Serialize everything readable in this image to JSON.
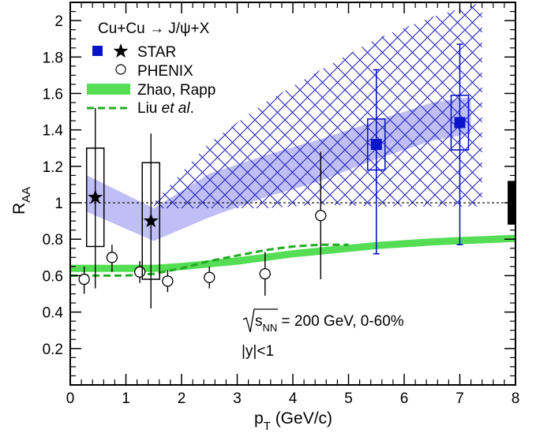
{
  "chart_data": {
    "type": "scatter",
    "xlabel": "p",
    "xlabel_sub": "T",
    "xlabel_unit": " (GeV/c)",
    "ylabel": "R",
    "ylabel_sub": "AA",
    "xlim": [
      0,
      8
    ],
    "ylim": [
      0,
      2.1
    ],
    "x_ticks": [
      0,
      1,
      2,
      3,
      4,
      5,
      6,
      7,
      8
    ],
    "y_ticks": [
      0.2,
      0.4,
      0.6,
      0.8,
      1,
      1.2,
      1.4,
      1.6,
      1.8,
      2
    ],
    "x_tick_labels": [
      "0",
      "1",
      "2",
      "3",
      "4",
      "5",
      "6",
      "7",
      "8"
    ],
    "y_tick_labels": [
      "0.2",
      "0.4",
      "0.6",
      "0.8",
      "1",
      "1.2",
      "1.4",
      "1.6",
      "1.8",
      "2"
    ],
    "grid": false,
    "legend_position": "top-left",
    "title": "Cu+Cu → J/ψ+X",
    "legend": {
      "star": "STAR",
      "phenix": "PHENIX",
      "zhao": "Zhao, Rapp",
      "liu_prefix": "Liu ",
      "liu_italic": "et al",
      "liu_suffix": "."
    },
    "annotations": {
      "energy_sqrt": "s",
      "energy_sub": "NN",
      "energy_rest": " = 200 GeV, 0-60%",
      "rapidity": "|y|<1"
    },
    "reference_line": 1.0,
    "series": [
      {
        "name": "STAR",
        "marker": "star",
        "color": "#000000",
        "points": [
          {
            "x": 0.45,
            "y": 1.03,
            "stat_low": 0.53,
            "stat_high": 1.52,
            "sys_low": 0.76,
            "sys_high": 1.3
          },
          {
            "x": 1.45,
            "y": 0.9,
            "stat_low": 0.42,
            "stat_high": 1.38,
            "sys_low": 0.58,
            "sys_high": 1.22
          }
        ]
      },
      {
        "name": "STAR",
        "marker": "square",
        "color": "#0a14c8",
        "points": [
          {
            "x": 5.5,
            "y": 1.32,
            "stat_low": 0.72,
            "stat_high": 1.73,
            "sys_low": 1.18,
            "sys_high": 1.46
          },
          {
            "x": 7.0,
            "y": 1.44,
            "stat_low": 0.77,
            "stat_high": 1.87,
            "sys_low": 1.29,
            "sys_high": 1.59
          }
        ]
      },
      {
        "name": "PHENIX",
        "marker": "open-circle",
        "color": "#000000",
        "points": [
          {
            "x": 0.25,
            "y": 0.58,
            "err_low": 0.5,
            "err_high": 0.65
          },
          {
            "x": 0.75,
            "y": 0.7,
            "err_low": 0.62,
            "err_high": 0.77
          },
          {
            "x": 1.25,
            "y": 0.62,
            "err_low": 0.56,
            "err_high": 0.68
          },
          {
            "x": 1.75,
            "y": 0.57,
            "err_low": 0.51,
            "err_high": 0.63
          },
          {
            "x": 2.5,
            "y": 0.59,
            "err_low": 0.53,
            "err_high": 0.65
          },
          {
            "x": 3.5,
            "y": 0.61,
            "err_low": 0.49,
            "err_high": 0.73
          },
          {
            "x": 4.5,
            "y": 0.93,
            "err_low": 0.58,
            "err_high": 1.28
          }
        ]
      },
      {
        "name": "Zhao, Rapp",
        "type": "band",
        "color": "#55dd55",
        "x": [
          0,
          1,
          1.5,
          2,
          2.5,
          3,
          3.5,
          4,
          4.5,
          5,
          5.5,
          6,
          6.5,
          7,
          7.5,
          8
        ],
        "low": [
          0.62,
          0.62,
          0.62,
          0.63,
          0.645,
          0.66,
          0.68,
          0.7,
          0.715,
          0.73,
          0.745,
          0.755,
          0.765,
          0.772,
          0.778,
          0.785
        ],
        "high": [
          0.66,
          0.66,
          0.66,
          0.67,
          0.685,
          0.7,
          0.72,
          0.74,
          0.755,
          0.77,
          0.785,
          0.795,
          0.805,
          0.812,
          0.818,
          0.825
        ]
      },
      {
        "name": "Liu et al.",
        "type": "dashed-line",
        "color": "#22aa22",
        "x": [
          0,
          1,
          1.5,
          2,
          2.5,
          3,
          3.5,
          4,
          4.5,
          5
        ],
        "y": [
          0.6,
          0.6,
          0.61,
          0.64,
          0.68,
          0.71,
          0.74,
          0.76,
          0.77,
          0.77
        ]
      },
      {
        "type": "shaded-band",
        "color": "#b4b4f5",
        "x": [
          0.3,
          1.5,
          2.5,
          3.5,
          4.5,
          5.5,
          6.5,
          7.2
        ],
        "low": [
          0.95,
          0.79,
          0.92,
          1.03,
          1.12,
          1.24,
          1.34,
          1.38
        ],
        "high": [
          1.15,
          0.97,
          1.16,
          1.26,
          1.35,
          1.45,
          1.55,
          1.58
        ]
      },
      {
        "type": "hatched-band",
        "color": "#1a1ab4",
        "x": [
          1.5,
          2.5,
          3.5,
          4.5,
          5.5,
          6.5,
          7.4
        ],
        "low": [
          0.97,
          0.97,
          0.97,
          0.99,
          0.98,
          0.98,
          0.98
        ],
        "high": [
          1.0,
          1.33,
          1.55,
          1.73,
          1.9,
          2.02,
          2.1
        ]
      },
      {
        "type": "normalization-box",
        "color": "#000000",
        "x": 7.93,
        "low": 0.88,
        "high": 1.12
      }
    ]
  }
}
